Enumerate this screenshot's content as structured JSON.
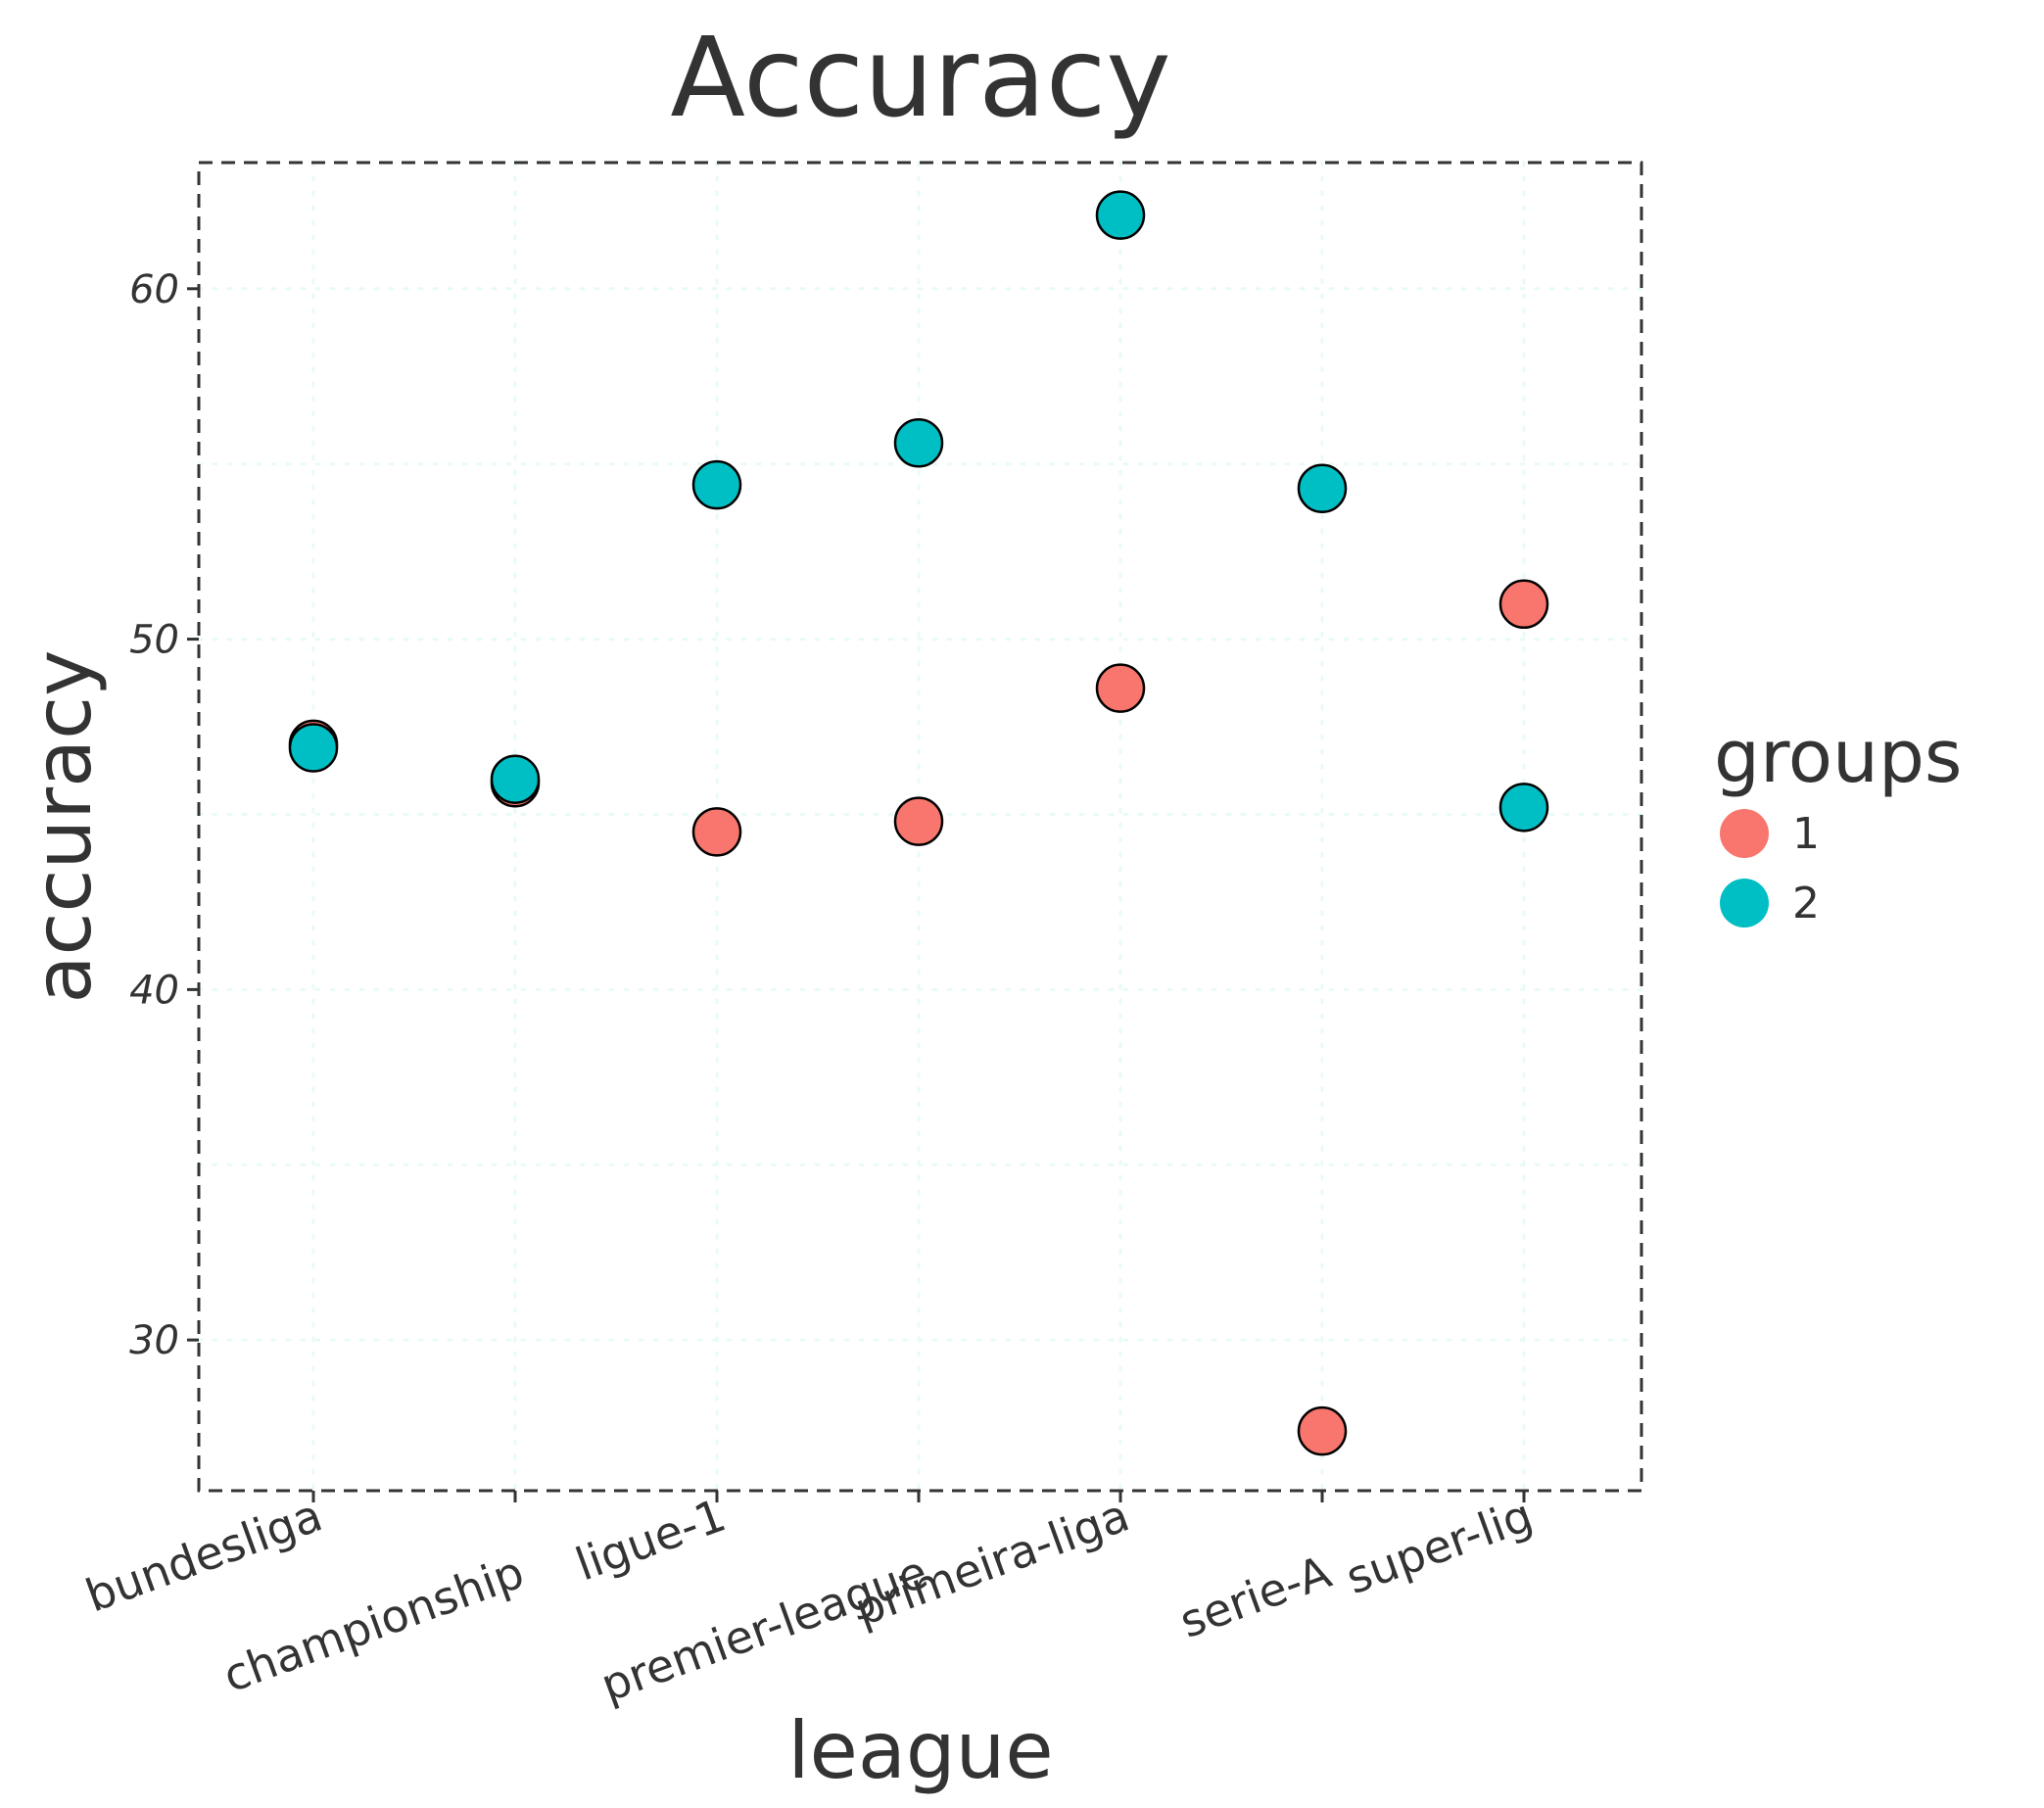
{
  "chart_data": {
    "type": "scatter",
    "title": "Accuracy",
    "xlabel": "league",
    "ylabel": "accuracy",
    "categories": [
      "bundesliga",
      "championship",
      "ligue-1",
      "premier-league",
      "primeira-liga",
      "serie-A",
      "super-lig"
    ],
    "yticks": [
      30,
      40,
      50,
      60
    ],
    "ylim": [
      25.7,
      63.6
    ],
    "grid": true,
    "legend": {
      "title": "groups",
      "position": "right",
      "entries": [
        {
          "label": "1",
          "color": "#F8766D"
        },
        {
          "label": "2",
          "color": "#00BFC4"
        }
      ]
    },
    "series": [
      {
        "name": "1",
        "color": "#F8766D",
        "values": [
          47.0,
          45.9,
          44.5,
          44.8,
          48.6,
          27.4,
          51.0
        ]
      },
      {
        "name": "2",
        "color": "#00BFC4",
        "values": [
          46.9,
          46.0,
          54.4,
          55.6,
          62.1,
          54.3,
          45.2
        ]
      }
    ]
  }
}
